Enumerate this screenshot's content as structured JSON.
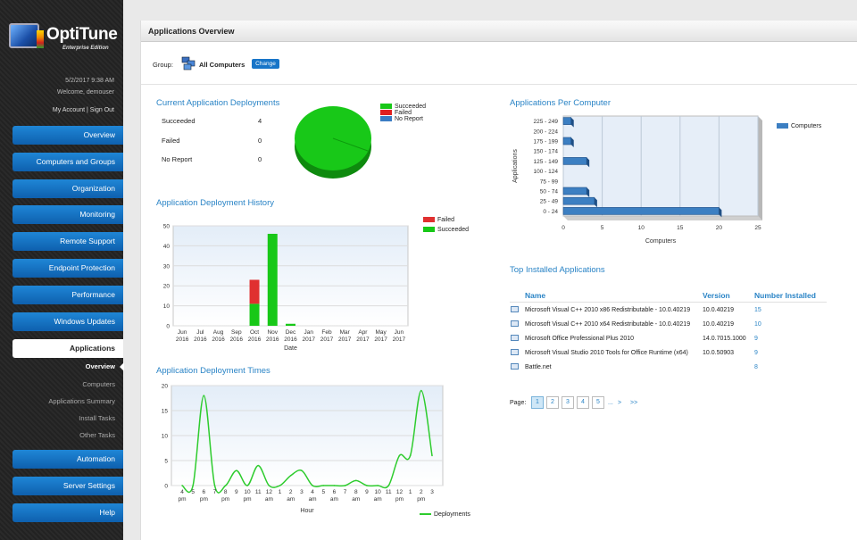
{
  "app": {
    "name": "OptiTune",
    "edition": "Enterprise Edition",
    "date": "5/2/2017 9:38 AM",
    "welcome": "Welcome, demouser",
    "account_links": "My Account | Sign Out"
  },
  "nav": {
    "items": [
      {
        "label": "Overview"
      },
      {
        "label": "Computers and Groups"
      },
      {
        "label": "Organization"
      },
      {
        "label": "Monitoring"
      },
      {
        "label": "Remote Support"
      },
      {
        "label": "Endpoint Protection"
      },
      {
        "label": "Performance"
      },
      {
        "label": "Windows Updates"
      },
      {
        "label": "Applications"
      },
      {
        "label": "Automation"
      },
      {
        "label": "Server Settings"
      },
      {
        "label": "Help"
      }
    ],
    "subitems": [
      {
        "label": "Overview"
      },
      {
        "label": "Computers"
      },
      {
        "label": "Applications Summary"
      },
      {
        "label": "Install Tasks"
      },
      {
        "label": "Other Tasks"
      }
    ]
  },
  "page": {
    "title": "Applications Overview",
    "group_label": "Group:",
    "group_name": "All Computers",
    "change_label": "Change"
  },
  "deployments": {
    "title": "Current Application Deployments",
    "rows": [
      {
        "label": "Succeeded",
        "value": "4"
      },
      {
        "label": "Failed",
        "value": "0"
      },
      {
        "label": "No Report",
        "value": "0"
      }
    ],
    "legend": [
      {
        "label": "Succeeded",
        "color": "#18c818"
      },
      {
        "label": "Failed",
        "color": "#e02020"
      },
      {
        "label": "No Report",
        "color": "#3a7cc4"
      }
    ]
  },
  "history": {
    "title": "Application Deployment History",
    "legend": [
      {
        "label": "Failed",
        "color": "#e03030"
      },
      {
        "label": "Succeeded",
        "color": "#18c818"
      }
    ]
  },
  "times": {
    "title": "Application Deployment Times",
    "legend": "Deployments"
  },
  "per_computer": {
    "title": "Applications Per Computer",
    "legend": "Computers"
  },
  "top_installed": {
    "title": "Top Installed Applications",
    "columns": [
      "Name",
      "Version",
      "Number Installed"
    ],
    "rows": [
      {
        "name": "Microsoft Visual C++ 2010 x86 Redistributable - 10.0.40219",
        "version": "10.0.40219",
        "count": "15"
      },
      {
        "name": "Microsoft Visual C++ 2010 x64 Redistributable - 10.0.40219",
        "version": "10.0.40219",
        "count": "10"
      },
      {
        "name": "Microsoft Office Professional Plus 2010",
        "version": "14.0.7015.1000",
        "count": "9"
      },
      {
        "name": "Microsoft Visual Studio 2010 Tools for Office Runtime (x64)",
        "version": "10.0.50903",
        "count": "9"
      },
      {
        "name": "Battle.net",
        "version": "",
        "count": "8"
      }
    ],
    "pager": {
      "label": "Page:",
      "pages": [
        "1",
        "2",
        "3",
        "4",
        "5"
      ],
      "ellipsis": "...",
      "next": ">",
      "last": ">>"
    }
  },
  "chart_data": [
    {
      "type": "pie",
      "title": "Current Application Deployments",
      "categories": [
        "Succeeded",
        "Failed",
        "No Report"
      ],
      "values": [
        4,
        0,
        0
      ],
      "colors": [
        "#18c818",
        "#e02020",
        "#3a7cc4"
      ]
    },
    {
      "type": "bar",
      "title": "Application Deployment History",
      "xlabel": "Date",
      "ylabel": "",
      "categories": [
        "Jun 2016",
        "Jul 2016",
        "Aug 2016",
        "Sep 2016",
        "Oct 2016",
        "Nov 2016",
        "Dec 2016",
        "Jan 2017",
        "Feb 2017",
        "Mar 2017",
        "Apr 2017",
        "May 2017",
        "Jun 2017"
      ],
      "tick_top": [
        "Jun",
        "Jul",
        "Aug",
        "Sep",
        "Oct",
        "Nov",
        "Dec",
        "Jan",
        "Feb",
        "Mar",
        "Apr",
        "May",
        "Jun"
      ],
      "tick_bottom": [
        "2016",
        "2016",
        "2016",
        "2016",
        "2016",
        "2016",
        "2016",
        "2017",
        "2017",
        "2017",
        "2017",
        "2017",
        "2017"
      ],
      "series": [
        {
          "name": "Succeeded",
          "color": "#18c818",
          "values": [
            0,
            0,
            0,
            0,
            11,
            46,
            1,
            0,
            0,
            0,
            0,
            0,
            0
          ]
        },
        {
          "name": "Failed",
          "color": "#e03030",
          "values": [
            0,
            0,
            0,
            0,
            12,
            0,
            0,
            0,
            0,
            0,
            0,
            0,
            0
          ]
        }
      ],
      "stacked": true,
      "ylim": [
        0,
        50
      ],
      "yticks": [
        0,
        10,
        20,
        30,
        40,
        50
      ]
    },
    {
      "type": "line",
      "title": "Application Deployment Times",
      "xlabel": "Hour",
      "ylabel": "",
      "tick_top": [
        "4",
        "5",
        "6",
        "7",
        "8",
        "9",
        "10",
        "11",
        "12",
        "1",
        "2",
        "3",
        "4",
        "5",
        "6",
        "7",
        "8",
        "9",
        "10",
        "11",
        "12",
        "1",
        "2",
        "3"
      ],
      "tick_bottom": [
        "pm",
        "pm",
        "pm",
        "pm",
        "pm",
        "pm",
        "pm",
        "pm",
        "am",
        "am",
        "am",
        "am",
        "am",
        "am",
        "am",
        "am",
        "am",
        "am",
        "am",
        "am",
        "pm",
        "pm",
        "pm",
        "pm"
      ],
      "series": [
        {
          "name": "Deployments",
          "color": "#2ecc2e",
          "values": [
            0,
            0,
            18,
            0,
            0,
            3,
            0,
            4,
            0,
            0,
            2,
            3,
            0,
            0,
            0,
            0,
            1,
            0,
            0,
            0,
            6,
            6,
            19,
            6
          ]
        }
      ],
      "ylim": [
        0,
        20
      ],
      "yticks": [
        0,
        5,
        10,
        15,
        20
      ]
    },
    {
      "type": "bar",
      "orientation": "horizontal",
      "title": "Applications Per Computer",
      "xlabel": "Computers",
      "ylabel": "Applications",
      "categories": [
        "0 - 24",
        "25 - 49",
        "50 - 74",
        "75 - 99",
        "100 - 124",
        "125 - 149",
        "150 - 174",
        "175 - 199",
        "200 - 224",
        "225 - 249"
      ],
      "series": [
        {
          "name": "Computers",
          "color": "#3c7fc2",
          "values": [
            20,
            4,
            3,
            0,
            0,
            3,
            0,
            1,
            0,
            1
          ]
        }
      ],
      "xlim": [
        0,
        25
      ],
      "xticks": [
        0,
        5,
        10,
        15,
        20,
        25
      ]
    }
  ]
}
